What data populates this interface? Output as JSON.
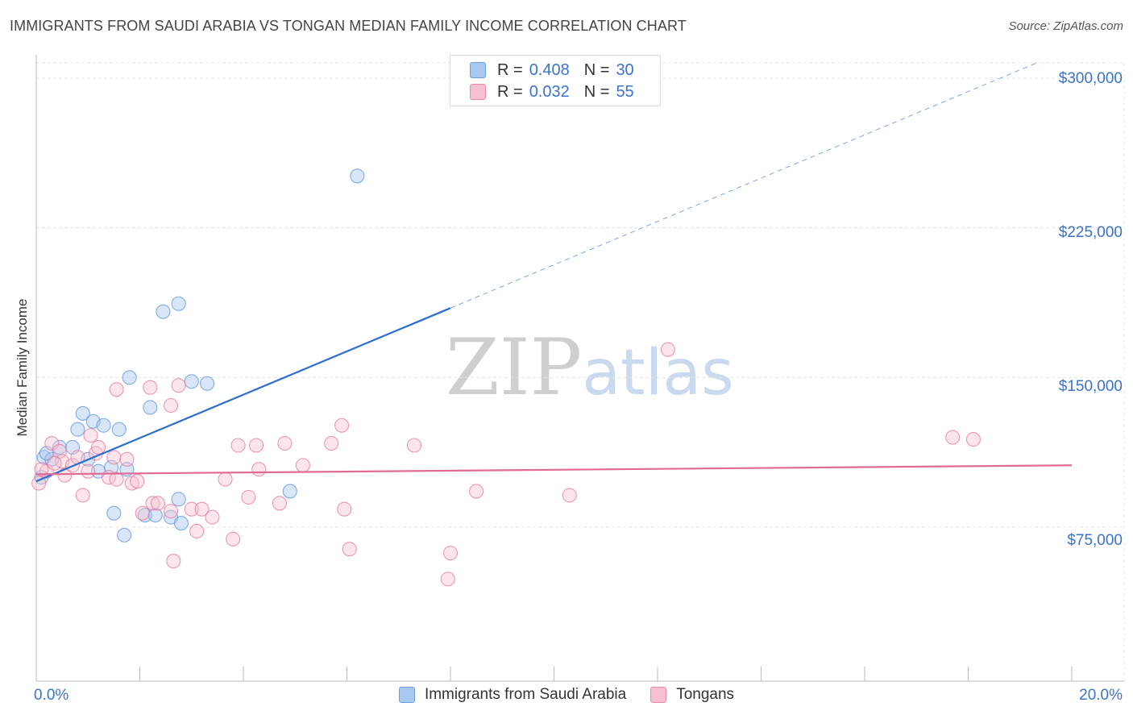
{
  "header": {
    "title": "IMMIGRANTS FROM SAUDI ARABIA VS TONGAN MEDIAN FAMILY INCOME CORRELATION CHART",
    "source": "Source: ZipAtlas.com"
  },
  "watermark": {
    "zip": "ZIP",
    "atlas": "atlas"
  },
  "legend": {
    "rows": [
      {
        "r_label": "R =",
        "r_value": "0.408",
        "n_label": "N =",
        "n_value": "30",
        "color": "#a9c8f0",
        "border": "#6b9de0"
      },
      {
        "r_label": "R =",
        "r_value": "0.032",
        "n_label": "N =",
        "n_value": "55",
        "color": "#f7c0d0",
        "border": "#e88aa8"
      }
    ]
  },
  "bottom_legend": {
    "items": [
      {
        "label": "Immigrants from Saudi Arabia",
        "color": "#a9c8f0",
        "border": "#6b9de0"
      },
      {
        "label": "Tongans",
        "color": "#f7c0d0",
        "border": "#e88aa8"
      }
    ]
  },
  "axes": {
    "ylabel": "Median Family Income",
    "x_min_label": "0.0%",
    "x_max_label": "20.0%",
    "y_ticks": [
      "$300,000",
      "$225,000",
      "$150,000",
      "$75,000"
    ]
  },
  "chart_data": {
    "type": "scatter",
    "xlabel": "",
    "ylabel": "Median Family Income",
    "xlim": [
      0,
      20
    ],
    "ylim": [
      0,
      310000
    ],
    "y_ticks": [
      75000,
      150000,
      225000,
      300000
    ],
    "grid": true,
    "legend_placement": "top-center",
    "colors": {
      "saudi": "#5b93dc",
      "tongan": "#e8759d"
    },
    "series": [
      {
        "name": "Immigrants from Saudi Arabia",
        "key": "saudi",
        "points": [
          [
            0.1,
            100000
          ],
          [
            0.15,
            110000
          ],
          [
            0.3,
            109000
          ],
          [
            0.45,
            115000
          ],
          [
            0.7,
            115000
          ],
          [
            0.8,
            124000
          ],
          [
            0.9,
            132000
          ],
          [
            1.1,
            128000
          ],
          [
            1.3,
            126000
          ],
          [
            1.0,
            109000
          ],
          [
            1.2,
            103000
          ],
          [
            1.45,
            105000
          ],
          [
            1.6,
            124000
          ],
          [
            1.75,
            104000
          ],
          [
            1.5,
            82000
          ],
          [
            1.7,
            71000
          ],
          [
            2.1,
            81000
          ],
          [
            2.3,
            81000
          ],
          [
            2.6,
            80000
          ],
          [
            2.8,
            77000
          ],
          [
            2.75,
            89000
          ],
          [
            1.8,
            150000
          ],
          [
            2.2,
            135000
          ],
          [
            2.45,
            183000
          ],
          [
            2.75,
            187000
          ],
          [
            3.0,
            148000
          ],
          [
            3.3,
            147000
          ],
          [
            4.9,
            93000
          ],
          [
            6.2,
            251000
          ],
          [
            0.2,
            112000
          ]
        ],
        "trend": {
          "x0": 0,
          "y0": 98000,
          "x_solid_end": 8.0,
          "x1": 20,
          "y1_dashed_end": 315000
        }
      },
      {
        "name": "Tongans",
        "key": "tongan",
        "points": [
          [
            0.05,
            97000
          ],
          [
            0.2,
            103000
          ],
          [
            0.3,
            117000
          ],
          [
            0.45,
            113000
          ],
          [
            0.5,
            108000
          ],
          [
            0.55,
            101000
          ],
          [
            0.7,
            106000
          ],
          [
            0.8,
            110000
          ],
          [
            0.9,
            91000
          ],
          [
            1.0,
            103000
          ],
          [
            1.05,
            121000
          ],
          [
            1.15,
            112000
          ],
          [
            1.2,
            115000
          ],
          [
            1.4,
            100000
          ],
          [
            1.55,
            99000
          ],
          [
            1.55,
            144000
          ],
          [
            1.5,
            110000
          ],
          [
            1.75,
            109000
          ],
          [
            1.85,
            97000
          ],
          [
            1.95,
            98000
          ],
          [
            2.05,
            82000
          ],
          [
            2.2,
            145000
          ],
          [
            2.25,
            87000
          ],
          [
            2.35,
            87000
          ],
          [
            2.6,
            83000
          ],
          [
            2.6,
            136000
          ],
          [
            2.65,
            58000
          ],
          [
            2.75,
            146000
          ],
          [
            3.0,
            84000
          ],
          [
            3.1,
            73000
          ],
          [
            3.2,
            84000
          ],
          [
            3.4,
            80000
          ],
          [
            3.65,
            99000
          ],
          [
            3.8,
            69000
          ],
          [
            3.9,
            116000
          ],
          [
            4.1,
            90000
          ],
          [
            4.25,
            116000
          ],
          [
            4.3,
            104000
          ],
          [
            4.7,
            87000
          ],
          [
            4.8,
            117000
          ],
          [
            5.15,
            106000
          ],
          [
            5.7,
            117000
          ],
          [
            5.9,
            126000
          ],
          [
            5.95,
            84000
          ],
          [
            6.05,
            64000
          ],
          [
            7.3,
            116000
          ],
          [
            7.95,
            49000
          ],
          [
            8.0,
            62000
          ],
          [
            8.5,
            93000
          ],
          [
            10.3,
            91000
          ],
          [
            12.2,
            164000
          ],
          [
            17.7,
            120000
          ],
          [
            18.1,
            119000
          ],
          [
            0.1,
            104000
          ],
          [
            0.35,
            107000
          ]
        ],
        "trend": {
          "x0": 0,
          "y0": 101500,
          "x1": 20,
          "y1": 106000
        }
      }
    ]
  }
}
